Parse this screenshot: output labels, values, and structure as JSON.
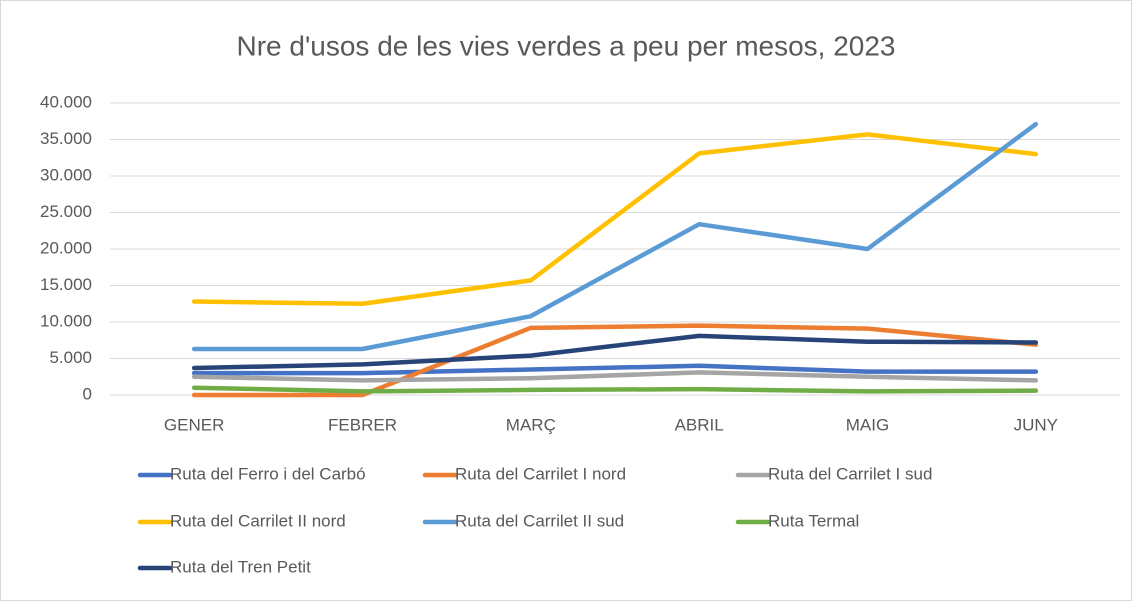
{
  "chart_data": {
    "type": "line",
    "title": "Nre d'usos de les vies verdes a peu per mesos, 2023",
    "categories": [
      "GENER",
      "FEBRER",
      "MARÇ",
      "ABRIL",
      "MAIG",
      "JUNY"
    ],
    "series": [
      {
        "name": "Ruta del Ferro i del Carbó",
        "color": "#4472c4",
        "values": [
          3000,
          3000,
          3500,
          4000,
          3200,
          3200
        ]
      },
      {
        "name": "Ruta del Carrilet I nord",
        "color": "#ed7d31",
        "values": [
          0,
          0,
          9200,
          9500,
          9100,
          6900
        ]
      },
      {
        "name": "Ruta del Carrilet I sud",
        "color": "#a5a5a5",
        "values": [
          2500,
          2000,
          2300,
          3100,
          2500,
          2000
        ]
      },
      {
        "name": "Ruta del Carrilet II nord",
        "color": "#ffc000",
        "values": [
          12800,
          12500,
          15700,
          33100,
          35700,
          33000
        ]
      },
      {
        "name": "Ruta del Carrilet II sud",
        "color": "#5b9bd5",
        "values": [
          6300,
          6300,
          10800,
          23400,
          20000,
          37100
        ]
      },
      {
        "name": "Ruta Termal",
        "color": "#70ad47",
        "values": [
          1000,
          500,
          700,
          800,
          500,
          600
        ]
      },
      {
        "name": "Ruta del Tren Petit",
        "color": "#264478",
        "values": [
          3700,
          4200,
          5400,
          8100,
          7300,
          7200
        ]
      }
    ],
    "ylim": [
      0,
      40000
    ],
    "yticks": [
      0,
      {
        "value": 5000,
        "label": "5.000"
      },
      {
        "value": 10000,
        "label": "10.000"
      },
      {
        "value": 15000,
        "label": "15.000"
      },
      {
        "value": 20000,
        "label": "20.000"
      },
      {
        "value": 25000,
        "label": "25.000"
      },
      {
        "value": 30000,
        "label": "30.000"
      },
      {
        "value": 35000,
        "label": "35.000"
      },
      {
        "value": 40000,
        "label": "40.000"
      }
    ],
    "grid": true,
    "legend": "bottom"
  }
}
